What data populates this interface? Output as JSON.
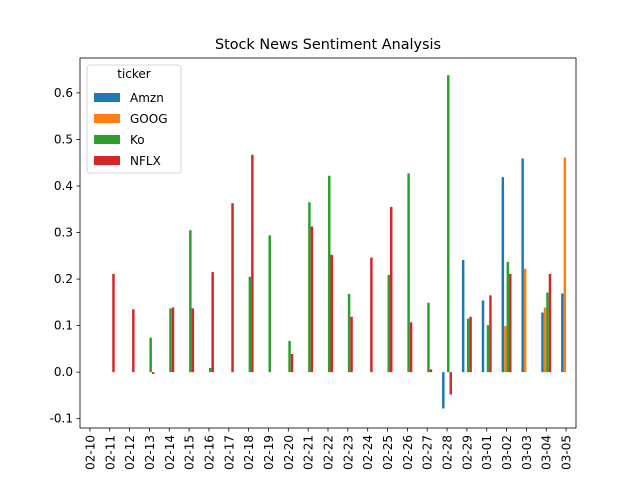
{
  "chart_data": {
    "type": "bar",
    "title": "Stock News Sentiment Analysis",
    "xlabel": "",
    "ylabel": "",
    "ylim": [
      -0.12,
      0.675
    ],
    "yticks": [
      -0.1,
      0.0,
      0.1,
      0.2,
      0.3,
      0.4,
      0.5,
      0.6
    ],
    "grid": false,
    "legend": {
      "title": "ticker",
      "placement": "top-left"
    },
    "categories": [
      "02-10",
      "02-11",
      "02-12",
      "02-13",
      "02-14",
      "02-15",
      "02-16",
      "02-17",
      "02-18",
      "02-19",
      "02-20",
      "02-21",
      "02-22",
      "02-23",
      "02-24",
      "02-25",
      "02-26",
      "02-27",
      "02-28",
      "02-29",
      "03-01",
      "03-02",
      "03-03",
      "03-04",
      "03-05"
    ],
    "series": [
      {
        "name": "Amzn",
        "color": "#1f77b4",
        "values": [
          0,
          0,
          0,
          0,
          0,
          0,
          0,
          0,
          0,
          0,
          0,
          0,
          0,
          0,
          0,
          0,
          0,
          0,
          -0.078,
          0.241,
          0.154,
          0.419,
          0.459,
          0.128,
          0.169
        ]
      },
      {
        "name": "GOOG",
        "color": "#ff7f0e",
        "values": [
          0,
          0,
          0,
          0,
          0,
          0,
          0,
          0,
          0,
          0,
          0,
          0,
          0,
          0,
          0,
          0,
          0,
          0,
          0,
          0,
          0,
          0.099,
          0.222,
          0.139,
          0.461
        ]
      },
      {
        "name": "Ko",
        "color": "#2ca02c",
        "values": [
          0,
          0,
          0,
          0.074,
          0.137,
          0.305,
          0.009,
          0,
          0.205,
          0.294,
          0.067,
          0.365,
          0.422,
          0.168,
          0,
          0.209,
          0.427,
          0.149,
          0.638,
          0.115,
          0.101,
          0.237,
          0,
          0.171,
          0
        ]
      },
      {
        "name": "NFLX",
        "color": "#d62728",
        "values": [
          0,
          0.211,
          0.135,
          -0.004,
          0.139,
          0.137,
          0.215,
          0.363,
          0.467,
          0,
          0.039,
          0.313,
          0.252,
          0.119,
          0.246,
          0.355,
          0.107,
          0.006,
          -0.048,
          0.119,
          0.165,
          0.211,
          0,
          0.211,
          0
        ]
      }
    ]
  }
}
